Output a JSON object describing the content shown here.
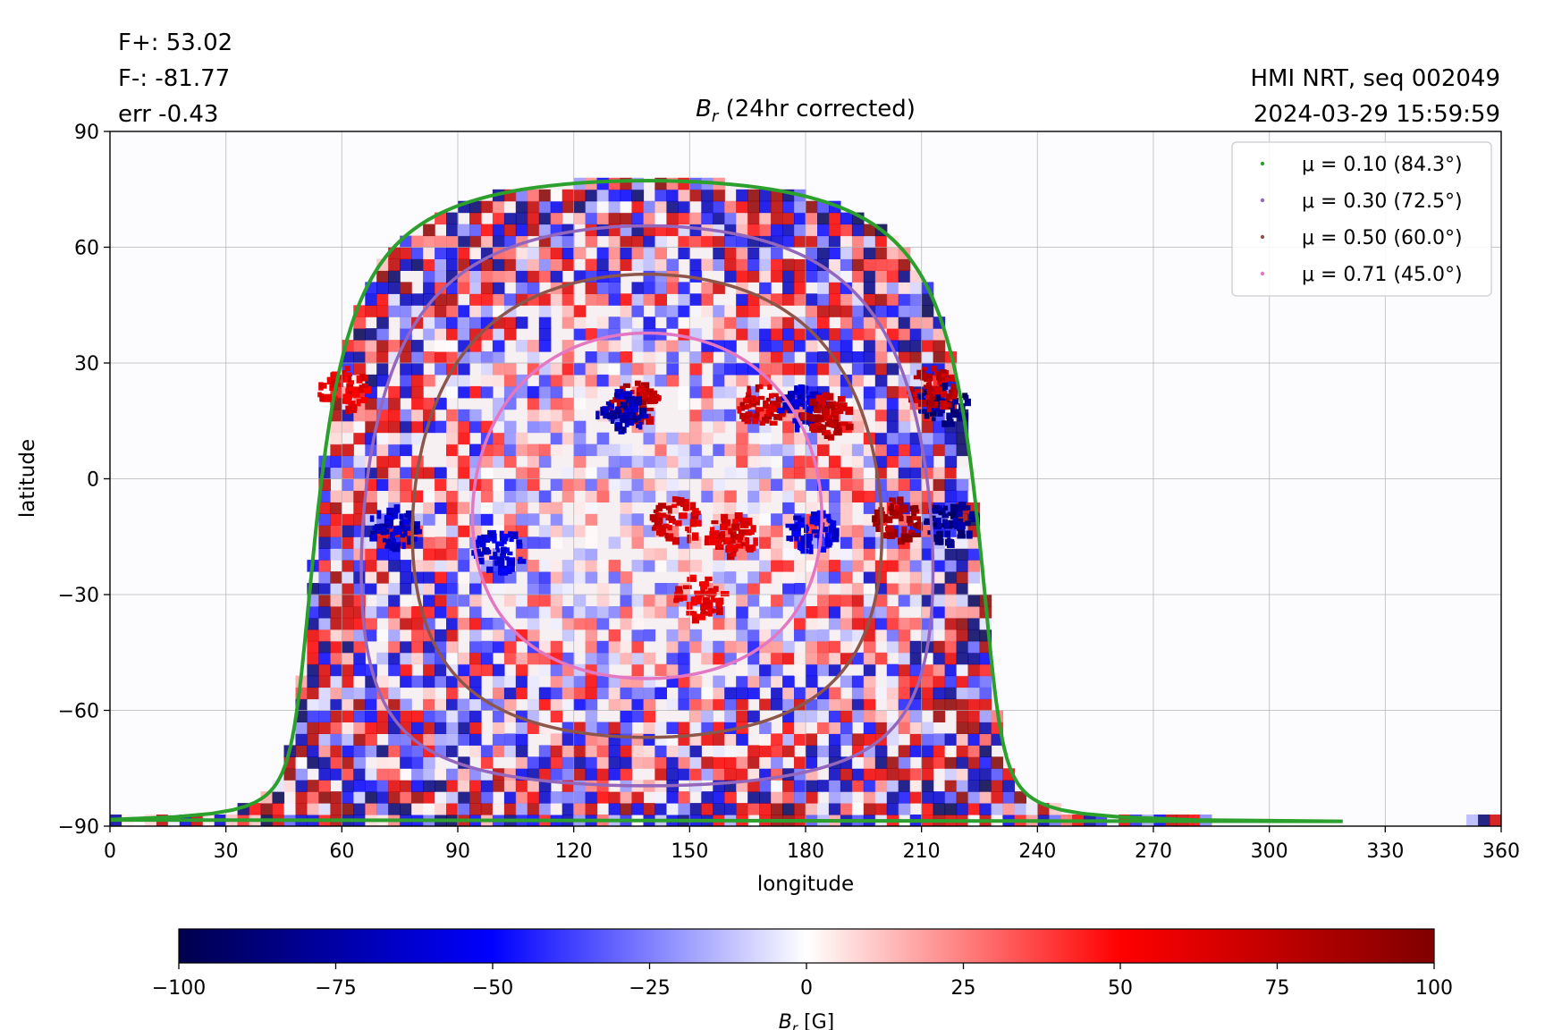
{
  "header": {
    "flux_pos": "F+: 53.02",
    "flux_neg": "F-: -81.77",
    "err": "err -0.43",
    "source": "HMI NRT, seq 002049",
    "timestamp": "2024-03-29 15:59:59"
  },
  "chart_data": {
    "type": "heatmap",
    "title": {
      "symbol": "B",
      "sub": "r",
      "rest": " (24hr corrected)"
    },
    "xlabel": "longitude",
    "ylabel": "latitude",
    "xlim": [
      0,
      360
    ],
    "ylim": [
      -90,
      90
    ],
    "xticks": [
      0,
      30,
      60,
      90,
      120,
      150,
      180,
      210,
      240,
      270,
      300,
      330,
      360
    ],
    "yticks": [
      90,
      60,
      30,
      0,
      -30,
      -60,
      -90
    ],
    "ytick_labels": [
      "90",
      "60",
      "30",
      "0",
      "−30",
      "−60",
      "−90"
    ],
    "grid": true,
    "legend_position": "top-right",
    "disk_center": {
      "lon": 139,
      "lat": -7
    },
    "contours": [
      {
        "label": "μ = 0.10 (84.3°)",
        "mu": 0.1,
        "angle_deg": 84.3,
        "color": "#2ca02c"
      },
      {
        "label": "μ = 0.30 (72.5°)",
        "mu": 0.3,
        "angle_deg": 72.5,
        "color": "#9467bd"
      },
      {
        "label": "μ = 0.50 (60.0°)",
        "mu": 0.5,
        "angle_deg": 60.0,
        "color": "#8c564b"
      },
      {
        "label": "μ = 0.71 (45.0°)",
        "mu": 0.71,
        "angle_deg": 45.0,
        "color": "#e377c2"
      }
    ],
    "active_regions": [
      {
        "lon": 135,
        "lat": 20,
        "field": 90
      },
      {
        "lon": 132,
        "lat": 18,
        "field": -85
      },
      {
        "lon": 168,
        "lat": 20,
        "field": 85
      },
      {
        "lon": 178,
        "lat": 19,
        "field": -75
      },
      {
        "lon": 185,
        "lat": 17,
        "field": 90
      },
      {
        "lon": 215,
        "lat": 20,
        "field": -100
      },
      {
        "lon": 212,
        "lat": 24,
        "field": 90
      },
      {
        "lon": 203,
        "lat": -10,
        "field": 100
      },
      {
        "lon": 217,
        "lat": -11,
        "field": -100
      },
      {
        "lon": 73,
        "lat": -12,
        "field": -80
      },
      {
        "lon": 60,
        "lat": 24,
        "field": 70
      },
      {
        "lon": 100,
        "lat": -18,
        "field": -70
      },
      {
        "lon": 146,
        "lat": -10,
        "field": 80
      },
      {
        "lon": 160,
        "lat": -14,
        "field": 75
      },
      {
        "lon": 152,
        "lat": -30,
        "field": 70
      },
      {
        "lon": 181,
        "lat": -13,
        "field": -70
      }
    ],
    "colorbar": {
      "label": {
        "symbol": "B",
        "sub": "r",
        "rest": " [G]"
      },
      "min": -100,
      "max": 100,
      "ticks": [
        -100,
        -75,
        -50,
        -25,
        0,
        25,
        50,
        75,
        100
      ],
      "tick_labels": [
        "−100",
        "−75",
        "−50",
        "−25",
        "0",
        "25",
        "50",
        "75",
        "100"
      ],
      "colormap": "seismic",
      "stops": [
        "#00004c",
        "#0000ff",
        "#ffffff",
        "#ff0000",
        "#800000"
      ]
    }
  }
}
